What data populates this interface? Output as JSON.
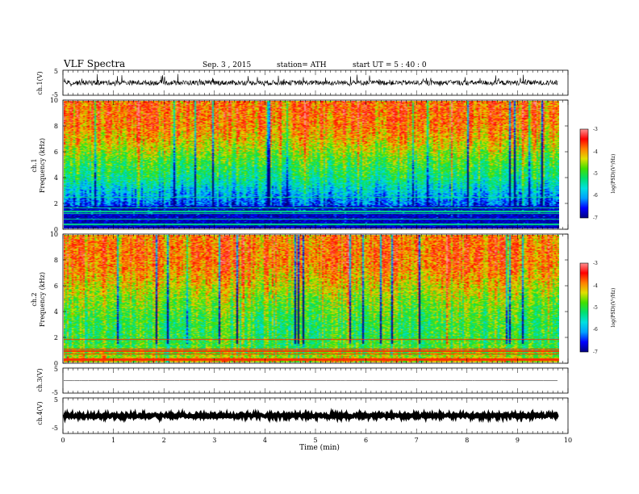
{
  "header": {
    "title": "VLF  Spectra",
    "date": "Sep. 3  , 2015",
    "station": "station= ATH",
    "start": "start  UT  =   5  : 40 : 0"
  },
  "colors": {
    "colorbar": [
      "#000080",
      "#0000ff",
      "#00a0ff",
      "#00e0e0",
      "#00e070",
      "#40e000",
      "#e0e000",
      "#ff8000",
      "#ff0000",
      "#ff9090",
      "#ffffff"
    ],
    "waveform": "#000000"
  },
  "chart_data": [
    {
      "type": "line",
      "panel": "ch1-waveform",
      "ylabel": "ch.1(V)",
      "ylim": [
        -5,
        5
      ],
      "yticks": [
        "5",
        "-5"
      ],
      "description_values": {
        "baseline": 0,
        "typical_amplitude": 1.0,
        "spike_amplitude": 2.5
      },
      "x_range": [
        0,
        9.8
      ]
    },
    {
      "type": "heatmap",
      "panel": "ch1-spectrogram",
      "ylabel_lines": [
        "ch.1",
        "Frequency  (kHz)"
      ],
      "ylim": [
        0,
        10
      ],
      "yticks": [
        "0",
        "2",
        "4",
        "6",
        "8",
        "10"
      ],
      "x_range": [
        0,
        9.8
      ],
      "colorbar": {
        "label": "log(PSD)(V²/Hz)",
        "range": [
          -7,
          -3
        ],
        "ticks": [
          "-3",
          "-4",
          "-5",
          "-6",
          "-7"
        ]
      },
      "profile_kHz_vs_logPSD": [
        [
          0.3,
          -7.0
        ],
        [
          1.0,
          -6.8
        ],
        [
          2.0,
          -6.3
        ],
        [
          3.0,
          -5.8
        ],
        [
          4.0,
          -5.3
        ],
        [
          5.0,
          -5.0
        ],
        [
          6.0,
          -4.6
        ],
        [
          7.0,
          -4.2
        ],
        [
          8.0,
          -3.9
        ],
        [
          9.0,
          -3.8
        ],
        [
          10.0,
          -3.8
        ]
      ]
    },
    {
      "type": "heatmap",
      "panel": "ch2-spectrogram",
      "ylabel_lines": [
        "ch.2",
        "Frequency  (kHz)"
      ],
      "ylim": [
        0,
        10
      ],
      "yticks": [
        "0",
        "2",
        "4",
        "6",
        "8",
        "10"
      ],
      "x_range": [
        0,
        9.8
      ],
      "colorbar": {
        "label": "log(PSD)(V²/Hz)",
        "range": [
          -7,
          -3
        ],
        "ticks": [
          "-3",
          "-4",
          "-5",
          "-6",
          "-7"
        ]
      },
      "profile_kHz_vs_logPSD": [
        [
          0.3,
          -4.3
        ],
        [
          1.0,
          -4.8
        ],
        [
          2.0,
          -5.0
        ],
        [
          3.0,
          -5.0
        ],
        [
          4.0,
          -4.8
        ],
        [
          5.0,
          -4.6
        ],
        [
          6.0,
          -4.3
        ],
        [
          7.0,
          -4.0
        ],
        [
          8.0,
          -3.8
        ],
        [
          9.0,
          -3.8
        ],
        [
          10.0,
          -3.9
        ]
      ]
    },
    {
      "type": "line",
      "panel": "ch3-waveform",
      "ylabel": "ch.3(V)",
      "ylim": [
        -5,
        5
      ],
      "yticks": [
        "5",
        "-5"
      ],
      "description_values": {
        "baseline": 0,
        "typical_amplitude": 0.1
      },
      "x_range": [
        0,
        9.8
      ]
    },
    {
      "type": "line",
      "panel": "ch4-waveform",
      "ylabel": "ch.4(V)",
      "ylim": [
        -5,
        5
      ],
      "yticks": [
        "5",
        "-5"
      ],
      "description_values": {
        "baseline": 0,
        "typical_amplitude": 0.4
      },
      "x_range": [
        0,
        9.8
      ]
    }
  ],
  "xaxis": {
    "label": "Time  (min)",
    "range": [
      0,
      10
    ],
    "ticks": [
      "0",
      "1",
      "2",
      "3",
      "4",
      "5",
      "6",
      "7",
      "8",
      "9",
      "10"
    ]
  }
}
